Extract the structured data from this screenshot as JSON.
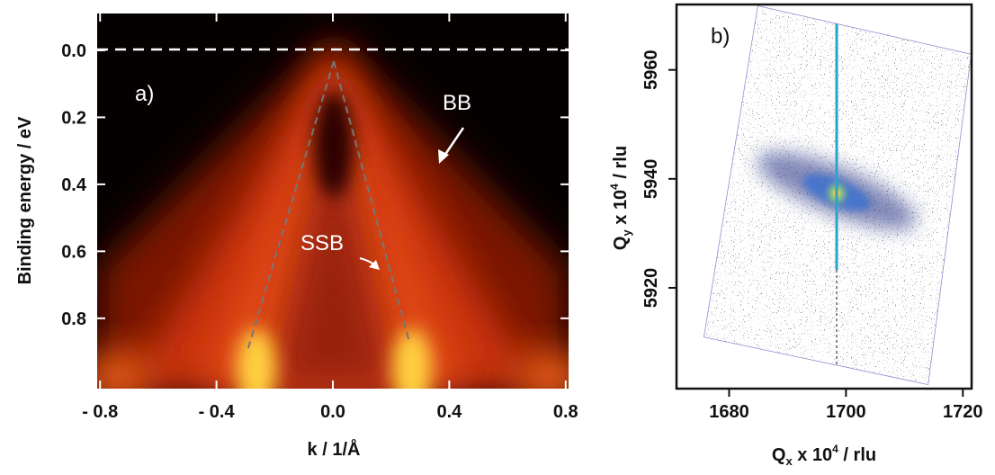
{
  "chart_data": [
    {
      "type": "heatmap",
      "xlabel": "k / 1/Å",
      "ylabel": "Binding energy / eV",
      "xlim": [
        -0.81,
        0.81
      ],
      "xticks": [
        {
          "value": -0.8,
          "label": "- 0.8"
        },
        {
          "value": -0.4,
          "label": "- 0.4"
        },
        {
          "value": 0,
          "label": "0.0"
        },
        0.4,
        0.8
      ],
      "ylim": [
        -0.11,
        1.01
      ],
      "y_reversed": true,
      "yticks": [
        {
          "value": 0,
          "label": "0.0"
        },
        0.2,
        0.4,
        0.6,
        0.8
      ],
      "annotations": [
        "a)",
        "BB",
        "SSB"
      ]
    },
    {
      "type": "heatmap",
      "xlabel": [
        "Q",
        "x",
        " x 10",
        "4",
        " / rlu"
      ],
      "ylabel": [
        "Q",
        "y",
        " x 10",
        "4",
        " / rlu"
      ],
      "xlim": [
        1671,
        1721.5
      ],
      "xticks": [
        1680,
        1700,
        1720
      ],
      "ylim": [
        5901.5,
        5972
      ],
      "yticks": [
        5920,
        5940,
        5960
      ],
      "annotations": [
        "b)"
      ]
    }
  ]
}
